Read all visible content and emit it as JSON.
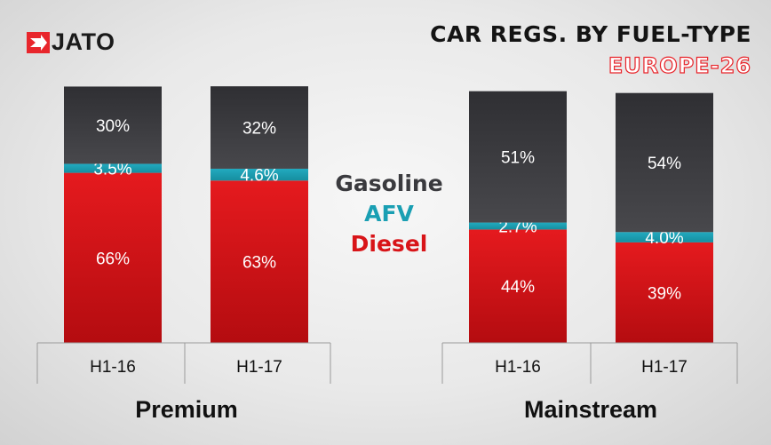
{
  "logo": {
    "text": "JATO"
  },
  "header": {
    "title": "CAR REGS. BY FUEL-TYPE",
    "subtitle": "EUROPE-26"
  },
  "colors": {
    "gasoline": "#3a3a3e",
    "afv": "#1a9fb3",
    "diesel": "#d81418",
    "accent": "#e8262c"
  },
  "chart_data": {
    "type": "bar",
    "stacked": true,
    "title": "CAR REGS. BY FUEL-TYPE",
    "subtitle": "EUROPE-26",
    "legend": [
      {
        "name": "Gasoline",
        "color": "#3a3a3e"
      },
      {
        "name": "AFV",
        "color": "#1a9fb3"
      },
      {
        "name": "Diesel",
        "color": "#d81418"
      }
    ],
    "legend_position": "center",
    "groups": [
      {
        "name": "Premium",
        "categories": [
          "H1-16",
          "H1-17"
        ],
        "series": [
          {
            "name": "Diesel",
            "values": [
              66,
              63
            ],
            "labels": [
              "66%",
              "63%"
            ]
          },
          {
            "name": "AFV",
            "values": [
              3.5,
              4.6
            ],
            "labels": [
              "3.5%",
              "4.6%"
            ]
          },
          {
            "name": "Gasoline",
            "values": [
              30,
              32
            ],
            "labels": [
              "30%",
              "32%"
            ]
          }
        ]
      },
      {
        "name": "Mainstream",
        "categories": [
          "H1-16",
          "H1-17"
        ],
        "series": [
          {
            "name": "Diesel",
            "values": [
              44,
              39
            ],
            "labels": [
              "44%",
              "39%"
            ]
          },
          {
            "name": "AFV",
            "values": [
              2.7,
              4.0
            ],
            "labels": [
              "2.7%",
              "4.0%"
            ]
          },
          {
            "name": "Gasoline",
            "values": [
              51,
              54
            ],
            "labels": [
              "51%",
              "54%"
            ]
          }
        ]
      }
    ],
    "ylim": [
      0,
      100
    ],
    "grid": false
  }
}
